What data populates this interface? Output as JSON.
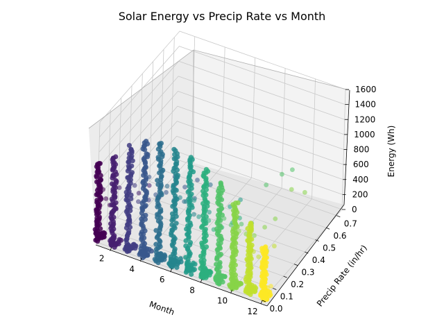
{
  "chart_data": {
    "type": "scatter",
    "projection": "3d",
    "title": "Solar Energy vs Precip Rate vs Month",
    "xlabel": "Month",
    "ylabel": "Precip Rate (in/hr)",
    "zlabel": "Energy (Wh)",
    "x_ticks": [
      "2",
      "4",
      "6",
      "8",
      "10",
      "12"
    ],
    "y_ticks": [
      "0.0",
      "0.1",
      "0.2",
      "0.3",
      "0.4",
      "0.5",
      "0.6",
      "0.7"
    ],
    "z_ticks": [
      "0",
      "200",
      "400",
      "600",
      "800",
      "1000",
      "1200",
      "1400",
      "1600"
    ],
    "xlim": [
      1,
      12
    ],
    "ylim": [
      0,
      0.75
    ],
    "zlim": [
      0,
      1600
    ],
    "colormap": "viridis",
    "color_by": "Month",
    "grid": true,
    "series": [
      {
        "month": 1,
        "max_energy_dry": 1050,
        "wet_points": [
          [
            0.05,
            620
          ],
          [
            0.08,
            450
          ],
          [
            0.12,
            300
          ]
        ]
      },
      {
        "month": 2,
        "max_energy_dry": 1200,
        "wet_points": [
          [
            0.06,
            700
          ],
          [
            0.15,
            480
          ],
          [
            0.25,
            320
          ],
          [
            0.35,
            260
          ]
        ]
      },
      {
        "month": 3,
        "max_energy_dry": 1400,
        "wet_points": [
          [
            0.06,
            800
          ],
          [
            0.1,
            520
          ],
          [
            0.2,
            380
          ],
          [
            0.3,
            250
          ],
          [
            0.45,
            180
          ]
        ]
      },
      {
        "month": 4,
        "max_energy_dry": 1550,
        "wet_points": [
          [
            0.05,
            1000
          ],
          [
            0.12,
            650
          ],
          [
            0.22,
            520
          ],
          [
            0.3,
            600
          ],
          [
            0.4,
            300
          ],
          [
            0.52,
            200
          ]
        ]
      },
      {
        "month": 5,
        "max_energy_dry": 1600,
        "wet_points": [
          [
            0.08,
            900
          ],
          [
            0.15,
            600
          ],
          [
            0.25,
            420
          ],
          [
            0.35,
            300
          ],
          [
            0.5,
            240
          ]
        ]
      },
      {
        "month": 6,
        "max_energy_dry": 1580,
        "wet_points": [
          [
            0.06,
            850
          ],
          [
            0.12,
            700
          ],
          [
            0.2,
            400
          ],
          [
            0.3,
            350
          ],
          [
            0.45,
            200
          ]
        ]
      },
      {
        "month": 7,
        "max_energy_dry": 1550,
        "wet_points": [
          [
            0.05,
            900
          ],
          [
            0.1,
            600
          ],
          [
            0.2,
            500
          ],
          [
            0.3,
            350
          ],
          [
            0.4,
            250
          ],
          [
            0.5,
            180
          ]
        ]
      },
      {
        "month": 8,
        "max_energy_dry": 1450,
        "wet_points": [
          [
            0.05,
            700
          ],
          [
            0.1,
            500
          ],
          [
            0.18,
            400
          ],
          [
            0.28,
            300
          ],
          [
            0.35,
            250
          ]
        ]
      },
      {
        "month": 9,
        "max_energy_dry": 1350,
        "wet_points": [
          [
            0.05,
            800
          ],
          [
            0.12,
            600
          ],
          [
            0.22,
            450
          ],
          [
            0.32,
            300
          ],
          [
            0.45,
            600
          ],
          [
            0.6,
            500
          ],
          [
            0.7,
            400
          ]
        ]
      },
      {
        "month": 10,
        "max_energy_dry": 1150,
        "wet_points": [
          [
            0.05,
            700
          ],
          [
            0.12,
            550
          ],
          [
            0.2,
            400
          ],
          [
            0.3,
            350
          ],
          [
            0.4,
            300
          ],
          [
            0.55,
            450
          ],
          [
            0.68,
            200
          ]
        ]
      },
      {
        "month": 11,
        "max_energy_dry": 950,
        "wet_points": [
          [
            0.05,
            500
          ],
          [
            0.1,
            350
          ],
          [
            0.18,
            300
          ],
          [
            0.25,
            250
          ]
        ]
      },
      {
        "month": 12,
        "max_energy_dry": 700,
        "wet_points": [
          [
            0.02,
            120
          ],
          [
            0.05,
            90
          ],
          [
            0.08,
            60
          ]
        ]
      }
    ]
  }
}
